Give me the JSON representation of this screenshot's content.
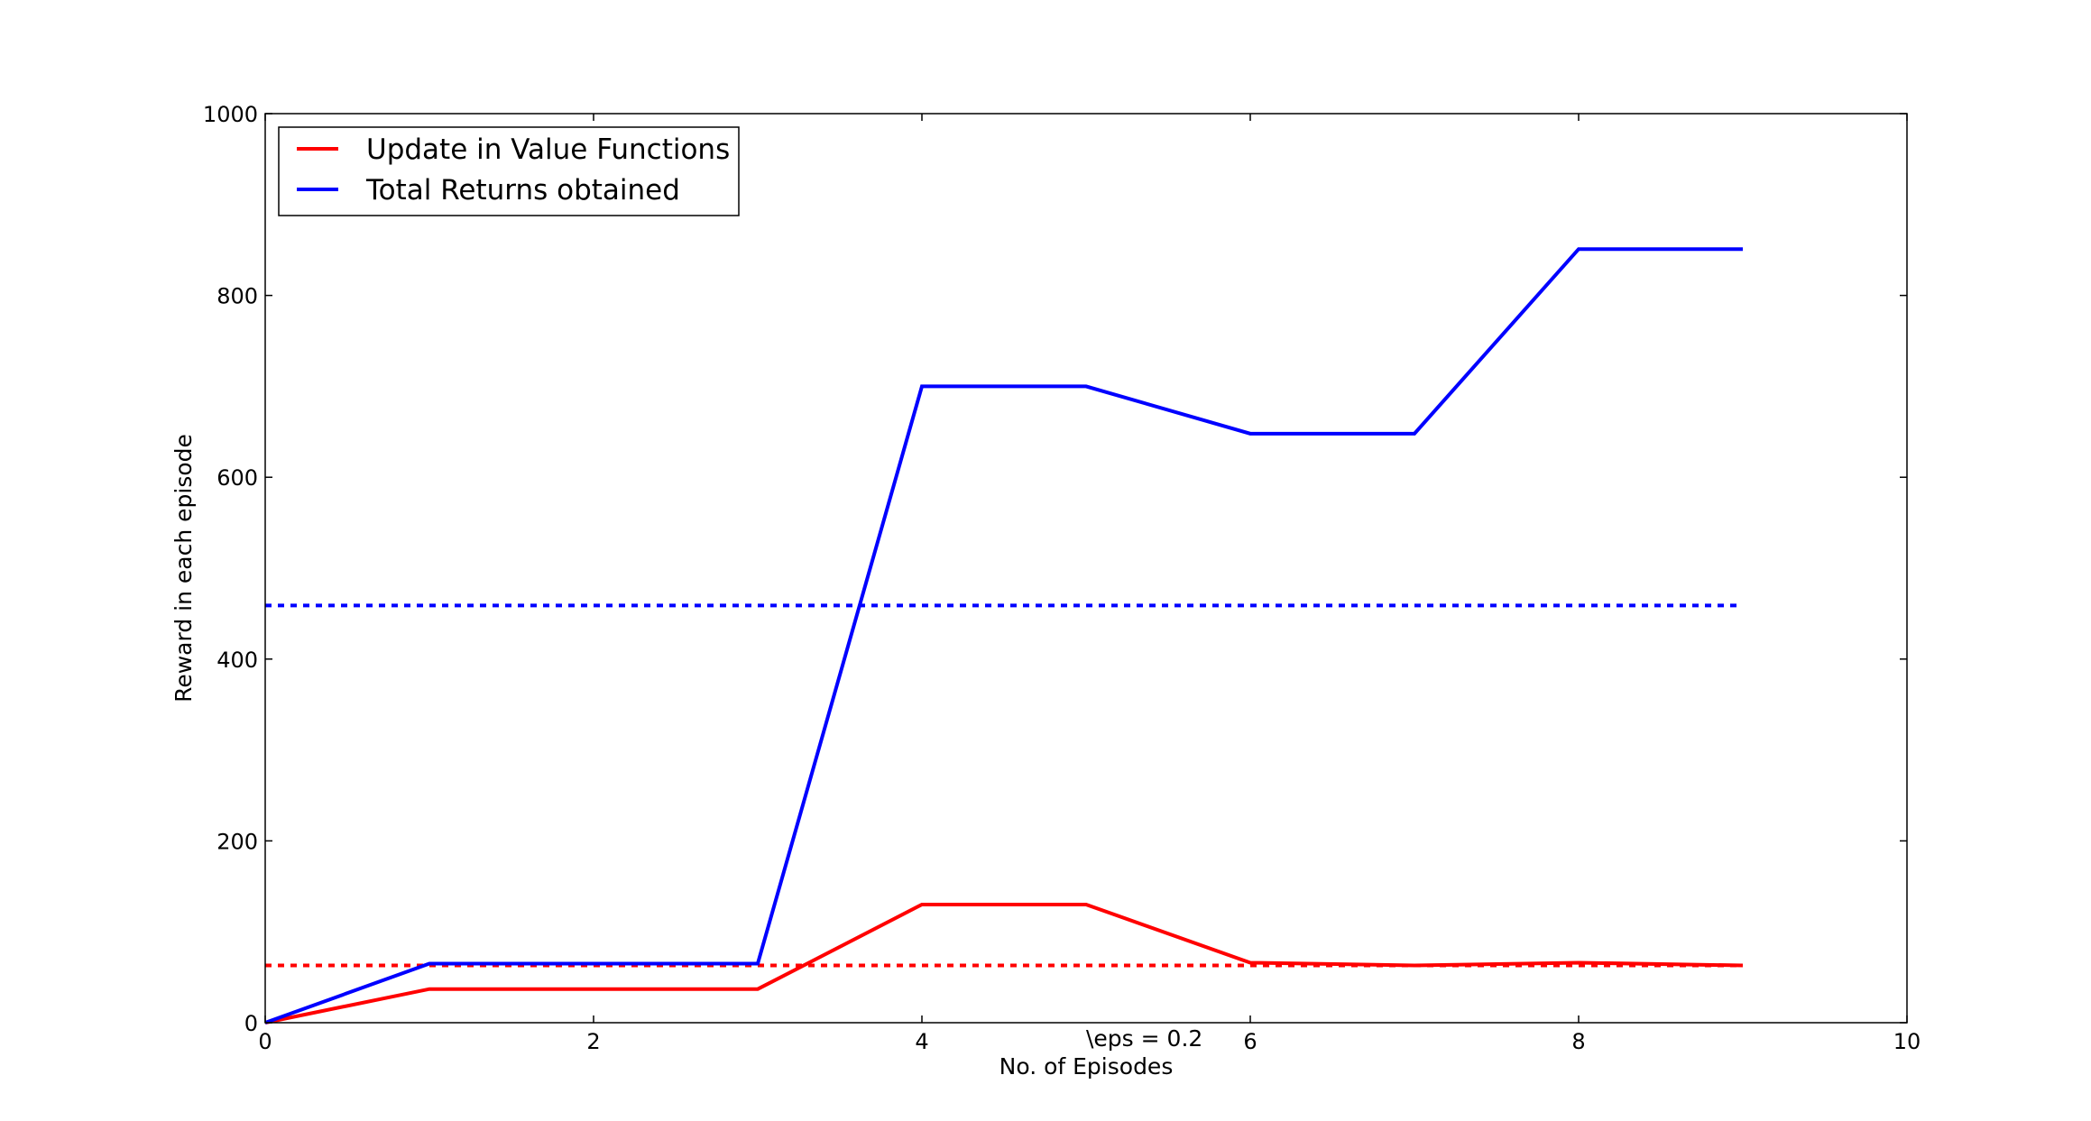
{
  "chart_data": {
    "type": "line",
    "title": "",
    "xlabel": "No. of Episodes",
    "ylabel": "Reward in each episode",
    "xlim": [
      0,
      10
    ],
    "ylim": [
      0,
      1000
    ],
    "xticks": [
      0,
      2,
      4,
      6,
      8,
      10
    ],
    "yticks": [
      0,
      200,
      400,
      600,
      800,
      1000
    ],
    "grid": false,
    "legend_position": "upper left",
    "annotation": "\\eps = 0.2",
    "series": [
      {
        "name": "Update in Value Functions",
        "color": "#ff0000",
        "style": "solid",
        "x": [
          0,
          1,
          2,
          3,
          4,
          5,
          6,
          7,
          8,
          9
        ],
        "y": [
          0,
          37,
          37,
          37,
          130,
          130,
          66,
          63,
          66,
          63
        ]
      },
      {
        "name": "Total Returns obtained",
        "color": "#0000ff",
        "style": "solid",
        "x": [
          0,
          1,
          2,
          3,
          4,
          5,
          6,
          7,
          8,
          9
        ],
        "y": [
          0,
          65,
          65,
          65,
          700,
          700,
          648,
          648,
          851,
          851
        ]
      }
    ],
    "reference_lines": [
      {
        "color": "#ff0000",
        "style": "dashed",
        "y": 63,
        "x": [
          0,
          9
        ]
      },
      {
        "color": "#0000ff",
        "style": "dashed",
        "y": 459,
        "x": [
          0,
          9
        ]
      }
    ]
  }
}
